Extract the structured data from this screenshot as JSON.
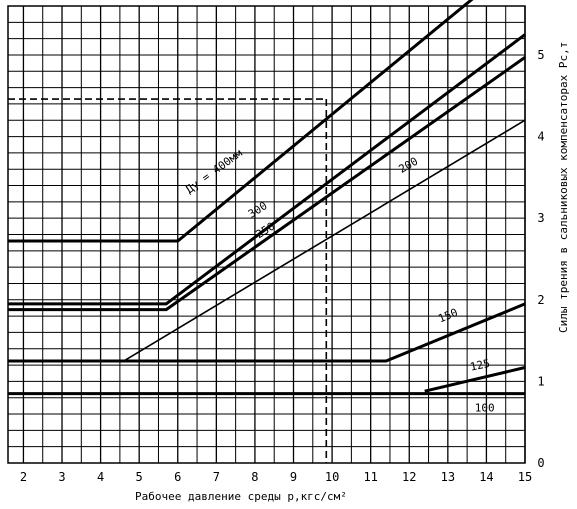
{
  "chart_data": {
    "type": "line",
    "xlabel": "Рабочее давление среды р,кгс/см²",
    "ylabel": "Силы трения в сальниковых компенсаторах Рс,т",
    "xlim": [
      1.6,
      15.0
    ],
    "ylim": [
      0,
      5.6
    ],
    "x_ticks": [
      "2",
      "3",
      "4",
      "5",
      "6",
      "7",
      "8",
      "9",
      "10",
      "11",
      "12",
      "13",
      "14",
      "15"
    ],
    "y_ticks": [
      "0",
      "1",
      "2",
      "3",
      "4",
      "5"
    ],
    "grid": true,
    "series": [
      {
        "name": "Ду = 400мм",
        "weight": "bold",
        "points": [
          [
            1.6,
            2.72
          ],
          [
            6.0,
            2.72
          ],
          [
            13.8,
            5.75
          ]
        ]
      },
      {
        "name": "300",
        "weight": "bold",
        "points": [
          [
            1.6,
            1.95
          ],
          [
            5.7,
            1.95
          ],
          [
            15.0,
            5.25
          ]
        ]
      },
      {
        "name": "250",
        "weight": "bold",
        "points": [
          [
            1.6,
            1.88
          ],
          [
            5.7,
            1.88
          ],
          [
            15.0,
            4.97
          ]
        ]
      },
      {
        "name": "200",
        "weight": "normal",
        "points": [
          [
            4.6,
            1.25
          ],
          [
            15.0,
            4.2
          ]
        ]
      },
      {
        "name": "150",
        "weight": "bold",
        "points": [
          [
            1.6,
            1.25
          ],
          [
            11.4,
            1.25
          ],
          [
            15.0,
            1.95
          ]
        ]
      },
      {
        "name": "125",
        "weight": "bold",
        "points": [
          [
            12.4,
            0.88
          ],
          [
            15.0,
            1.17
          ]
        ]
      },
      {
        "name": "100",
        "weight": "bold",
        "points": [
          [
            1.6,
            0.85
          ],
          [
            15.0,
            0.85
          ]
        ]
      }
    ],
    "annotations": {
      "reference_line_y": 4.46,
      "reference_line_x": 9.85
    }
  }
}
